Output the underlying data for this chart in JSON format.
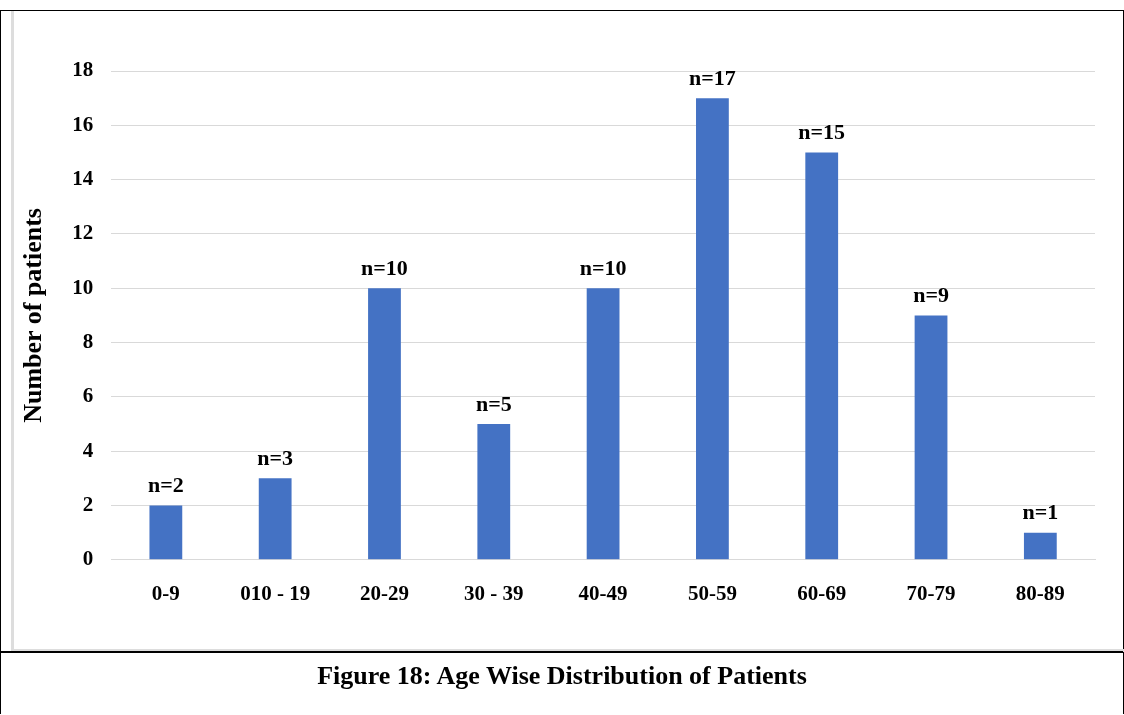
{
  "chart_data": {
    "type": "bar",
    "title": "Figure 18: Age Wise Distribution of Patients",
    "ylabel": "Number of patients",
    "categories": [
      "0-9",
      "010 - 19",
      "20-29",
      "30 - 39",
      "40-49",
      "50-59",
      "60-69",
      "70-79",
      "80-89"
    ],
    "values": [
      2,
      3,
      10,
      5,
      10,
      17,
      15,
      9,
      1
    ],
    "color": "#4472c4",
    "value_labels": [
      "n=2",
      "n=3",
      "n=10",
      "n=5",
      "n=10",
      "n=17",
      "n=15",
      "n=9",
      "n=1"
    ],
    "ylim": [
      0,
      18
    ],
    "yticks": [
      0,
      2,
      4,
      6,
      8,
      10,
      12,
      14,
      16,
      18
    ],
    "grid": "y"
  }
}
